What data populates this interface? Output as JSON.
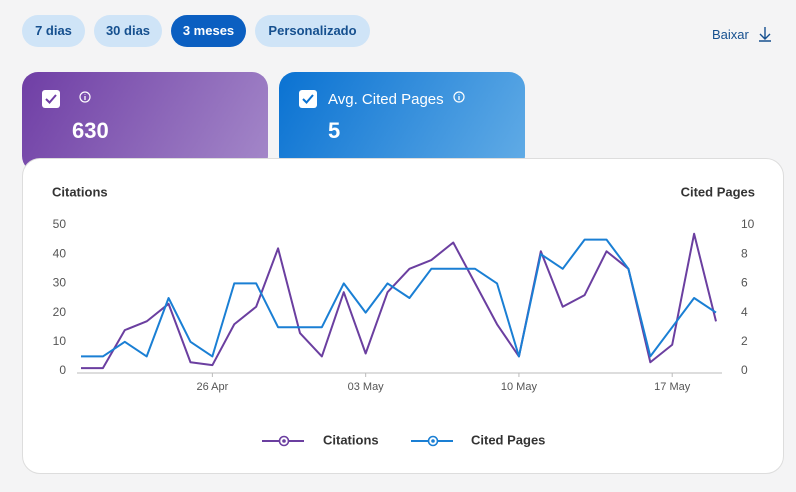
{
  "filters": {
    "buttons": [
      "7 dias",
      "30 dias",
      "3 meses",
      "Personalizado"
    ],
    "selected": 2
  },
  "download": "Baixar",
  "cards": [
    {
      "value": 630
    },
    {
      "label": "Avg. Cited Pages",
      "value": 5
    }
  ],
  "chart_data": {
    "type": "line",
    "y_label": "Citations",
    "y2_label": "Cited Pages",
    "categories": [
      null,
      null,
      null,
      null,
      null,
      null,
      "26 Apr",
      null,
      null,
      null,
      null,
      null,
      null,
      "03 May",
      null,
      null,
      null,
      null,
      null,
      null,
      "10 May",
      null,
      null,
      null,
      null,
      null,
      null,
      "17 May",
      null,
      null
    ],
    "series": [
      {
        "name": "Citations",
        "color": "#6b3fa0",
        "values": [
          1,
          1,
          14,
          17,
          23,
          3,
          2,
          16,
          22,
          42,
          13,
          5,
          27,
          6,
          27,
          35,
          38,
          44,
          30,
          16,
          5,
          41,
          22,
          26,
          41,
          35,
          3,
          9,
          47,
          17
        ]
      },
      {
        "name": "Cited Pages",
        "color": "#1a7fd4",
        "axis": "y2",
        "values": [
          1,
          1,
          2,
          1,
          5,
          2,
          1,
          6,
          6,
          3,
          3,
          3,
          6,
          4,
          6,
          5,
          7,
          7,
          7,
          6,
          1,
          8,
          7,
          9,
          9,
          7,
          1,
          3,
          5,
          4
        ]
      }
    ],
    "ylim": [
      0,
      50
    ],
    "yticks": [
      0,
      10,
      20,
      30,
      40,
      50
    ],
    "y2lim": [
      0,
      10
    ],
    "y2ticks": [
      0,
      2,
      4,
      6,
      8,
      10
    ],
    "legend": "bottom"
  }
}
